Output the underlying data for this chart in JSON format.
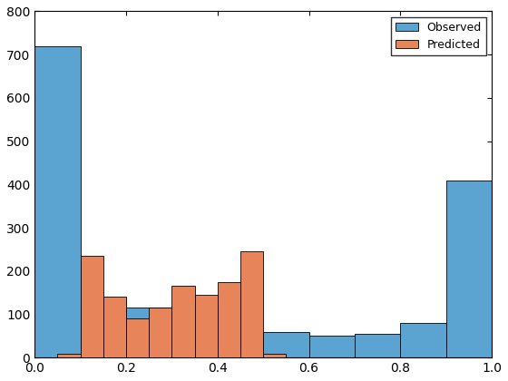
{
  "observed_bin_edges": [
    0.0,
    0.1,
    0.2,
    0.3,
    0.4,
    0.5,
    0.6,
    0.7,
    0.8,
    0.9,
    1.0
  ],
  "observed_counts": [
    720,
    135,
    115,
    120,
    55,
    60,
    50,
    55,
    80,
    410
  ],
  "predicted_bin_edges": [
    0.05,
    0.1,
    0.15,
    0.2,
    0.25,
    0.3,
    0.35,
    0.4,
    0.45,
    0.5,
    0.55
  ],
  "predicted_counts": [
    8,
    235,
    140,
    90,
    115,
    165,
    145,
    175,
    245,
    8
  ],
  "observed_color": "#5BA3D0",
  "predicted_color": "#E8845A",
  "observed_label": "Observed",
  "predicted_label": "Predicted",
  "xlim": [
    0.0,
    1.0
  ],
  "ylim": [
    0,
    800
  ],
  "yticks": [
    0,
    100,
    200,
    300,
    400,
    500,
    600,
    700,
    800
  ],
  "xticks": [
    0.0,
    0.2,
    0.4,
    0.6,
    0.8,
    1.0
  ],
  "background_color": "#ffffff"
}
